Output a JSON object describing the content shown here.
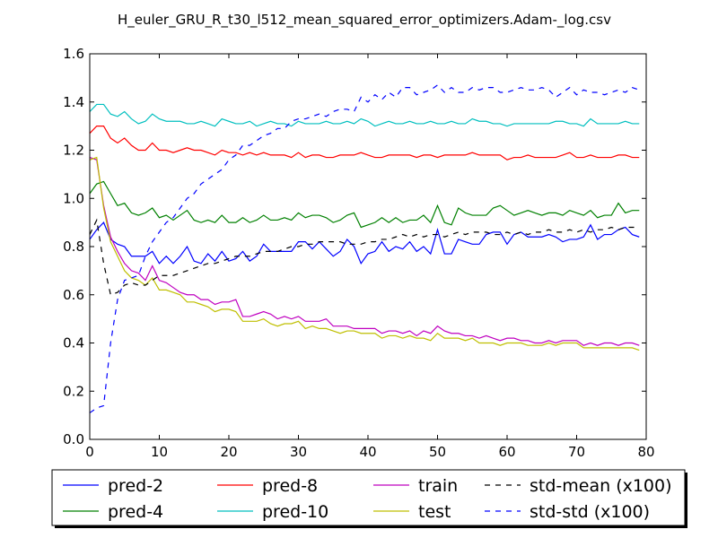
{
  "chart_data": {
    "type": "line",
    "title": "H_euler_GRU_R_t30_l512_mean_squared_error_optimizers.Adam-_log.csv",
    "xlabel": "",
    "ylabel": "",
    "xlim": [
      0,
      80
    ],
    "ylim": [
      0.0,
      1.6
    ],
    "xticks": [
      "0",
      "10",
      "20",
      "30",
      "40",
      "50",
      "60",
      "70",
      "80"
    ],
    "yticks": [
      "0.0",
      "0.2",
      "0.4",
      "0.6",
      "0.8",
      "1.0",
      "1.2",
      "1.4",
      "1.6"
    ],
    "grid": false,
    "legend_position": "bottom-center-outside",
    "series": [
      {
        "name": "pred-2",
        "color": "#0000ff",
        "dash": "solid",
        "values": [
          0.83,
          0.87,
          0.9,
          0.83,
          0.81,
          0.8,
          0.76,
          0.76,
          0.76,
          0.78,
          0.73,
          0.76,
          0.73,
          0.76,
          0.8,
          0.74,
          0.73,
          0.77,
          0.74,
          0.78,
          0.74,
          0.75,
          0.78,
          0.74,
          0.76,
          0.81,
          0.78,
          0.78,
          0.78,
          0.78,
          0.82,
          0.82,
          0.79,
          0.82,
          0.79,
          0.76,
          0.78,
          0.83,
          0.8,
          0.73,
          0.77,
          0.78,
          0.82,
          0.78,
          0.8,
          0.79,
          0.82,
          0.78,
          0.8,
          0.77,
          0.87,
          0.77,
          0.77,
          0.83,
          0.82,
          0.81,
          0.81,
          0.85,
          0.86,
          0.86,
          0.81,
          0.85,
          0.86,
          0.84,
          0.84,
          0.84,
          0.85,
          0.84,
          0.82,
          0.83,
          0.83,
          0.84,
          0.89,
          0.83,
          0.85,
          0.85,
          0.87,
          0.88,
          0.85,
          0.84
        ]
      },
      {
        "name": "pred-4",
        "color": "#008000",
        "dash": "solid",
        "values": [
          1.02,
          1.06,
          1.07,
          1.02,
          0.97,
          0.98,
          0.94,
          0.93,
          0.94,
          0.96,
          0.92,
          0.93,
          0.91,
          0.93,
          0.95,
          0.91,
          0.9,
          0.91,
          0.9,
          0.93,
          0.9,
          0.9,
          0.92,
          0.9,
          0.91,
          0.93,
          0.91,
          0.91,
          0.92,
          0.91,
          0.94,
          0.92,
          0.93,
          0.93,
          0.92,
          0.9,
          0.91,
          0.93,
          0.94,
          0.88,
          0.89,
          0.9,
          0.92,
          0.9,
          0.92,
          0.9,
          0.91,
          0.91,
          0.93,
          0.9,
          0.97,
          0.9,
          0.89,
          0.96,
          0.94,
          0.93,
          0.93,
          0.93,
          0.96,
          0.97,
          0.95,
          0.93,
          0.94,
          0.95,
          0.94,
          0.93,
          0.94,
          0.94,
          0.93,
          0.95,
          0.94,
          0.93,
          0.95,
          0.92,
          0.93,
          0.93,
          0.98,
          0.94,
          0.95,
          0.95
        ]
      },
      {
        "name": "pred-8",
        "color": "#ff0000",
        "dash": "solid",
        "values": [
          1.27,
          1.3,
          1.3,
          1.25,
          1.23,
          1.25,
          1.22,
          1.2,
          1.2,
          1.23,
          1.2,
          1.2,
          1.19,
          1.2,
          1.21,
          1.2,
          1.2,
          1.19,
          1.18,
          1.2,
          1.19,
          1.19,
          1.18,
          1.19,
          1.18,
          1.19,
          1.18,
          1.18,
          1.18,
          1.17,
          1.19,
          1.17,
          1.18,
          1.18,
          1.17,
          1.17,
          1.18,
          1.18,
          1.18,
          1.19,
          1.18,
          1.17,
          1.17,
          1.18,
          1.18,
          1.18,
          1.18,
          1.17,
          1.18,
          1.18,
          1.17,
          1.18,
          1.18,
          1.18,
          1.18,
          1.19,
          1.18,
          1.18,
          1.18,
          1.18,
          1.16,
          1.17,
          1.17,
          1.18,
          1.17,
          1.17,
          1.17,
          1.17,
          1.18,
          1.19,
          1.17,
          1.17,
          1.18,
          1.17,
          1.17,
          1.17,
          1.18,
          1.18,
          1.17,
          1.17
        ]
      },
      {
        "name": "pred-10",
        "color": "#00bfbf",
        "dash": "solid",
        "values": [
          1.36,
          1.39,
          1.39,
          1.35,
          1.34,
          1.36,
          1.33,
          1.31,
          1.32,
          1.35,
          1.33,
          1.32,
          1.32,
          1.32,
          1.31,
          1.31,
          1.32,
          1.31,
          1.3,
          1.33,
          1.32,
          1.31,
          1.31,
          1.32,
          1.3,
          1.31,
          1.32,
          1.31,
          1.31,
          1.3,
          1.32,
          1.31,
          1.31,
          1.31,
          1.32,
          1.31,
          1.31,
          1.32,
          1.31,
          1.33,
          1.32,
          1.3,
          1.31,
          1.32,
          1.31,
          1.31,
          1.32,
          1.31,
          1.31,
          1.32,
          1.31,
          1.31,
          1.32,
          1.31,
          1.31,
          1.33,
          1.32,
          1.32,
          1.31,
          1.31,
          1.3,
          1.31,
          1.31,
          1.31,
          1.31,
          1.31,
          1.31,
          1.32,
          1.32,
          1.31,
          1.31,
          1.3,
          1.33,
          1.31,
          1.31,
          1.31,
          1.31,
          1.32,
          1.31,
          1.31
        ]
      },
      {
        "name": "train",
        "color": "#bf00bf",
        "dash": "solid",
        "values": [
          1.17,
          1.16,
          0.97,
          0.84,
          0.78,
          0.73,
          0.7,
          0.69,
          0.66,
          0.72,
          0.66,
          0.65,
          0.63,
          0.61,
          0.6,
          0.6,
          0.58,
          0.58,
          0.56,
          0.57,
          0.57,
          0.58,
          0.51,
          0.51,
          0.52,
          0.53,
          0.52,
          0.5,
          0.51,
          0.5,
          0.51,
          0.49,
          0.49,
          0.49,
          0.5,
          0.47,
          0.47,
          0.47,
          0.46,
          0.46,
          0.46,
          0.46,
          0.44,
          0.45,
          0.45,
          0.44,
          0.45,
          0.43,
          0.45,
          0.44,
          0.47,
          0.45,
          0.44,
          0.44,
          0.43,
          0.43,
          0.42,
          0.43,
          0.42,
          0.41,
          0.42,
          0.42,
          0.41,
          0.41,
          0.4,
          0.4,
          0.41,
          0.4,
          0.41,
          0.41,
          0.41,
          0.39,
          0.4,
          0.39,
          0.4,
          0.4,
          0.39,
          0.4,
          0.4,
          0.39
        ]
      },
      {
        "name": "test",
        "color": "#bfbf00",
        "dash": "solid",
        "values": [
          1.16,
          1.17,
          0.96,
          0.82,
          0.76,
          0.7,
          0.67,
          0.66,
          0.64,
          0.67,
          0.62,
          0.62,
          0.61,
          0.6,
          0.57,
          0.57,
          0.56,
          0.55,
          0.53,
          0.54,
          0.54,
          0.53,
          0.49,
          0.49,
          0.49,
          0.5,
          0.48,
          0.47,
          0.48,
          0.48,
          0.49,
          0.46,
          0.47,
          0.46,
          0.46,
          0.45,
          0.44,
          0.45,
          0.45,
          0.44,
          0.44,
          0.44,
          0.42,
          0.43,
          0.43,
          0.42,
          0.43,
          0.42,
          0.42,
          0.41,
          0.44,
          0.42,
          0.42,
          0.42,
          0.41,
          0.42,
          0.4,
          0.4,
          0.4,
          0.39,
          0.4,
          0.4,
          0.4,
          0.39,
          0.39,
          0.39,
          0.4,
          0.39,
          0.4,
          0.4,
          0.4,
          0.38,
          0.38,
          0.38,
          0.38,
          0.38,
          0.38,
          0.38,
          0.38,
          0.37
        ]
      },
      {
        "name": "std-mean (x100)",
        "color": "#000000",
        "dash": "dashed",
        "values": [
          0.85,
          0.91,
          0.73,
          0.6,
          0.61,
          0.64,
          0.65,
          0.64,
          0.64,
          0.66,
          0.68,
          0.68,
          0.68,
          0.69,
          0.7,
          0.71,
          0.72,
          0.73,
          0.73,
          0.74,
          0.75,
          0.76,
          0.76,
          0.76,
          0.77,
          0.78,
          0.78,
          0.78,
          0.79,
          0.8,
          0.8,
          0.81,
          0.81,
          0.82,
          0.82,
          0.82,
          0.82,
          0.81,
          0.81,
          0.81,
          0.82,
          0.82,
          0.83,
          0.83,
          0.84,
          0.85,
          0.84,
          0.85,
          0.84,
          0.85,
          0.85,
          0.84,
          0.85,
          0.86,
          0.85,
          0.86,
          0.86,
          0.86,
          0.85,
          0.85,
          0.86,
          0.85,
          0.86,
          0.85,
          0.86,
          0.86,
          0.87,
          0.86,
          0.86,
          0.87,
          0.86,
          0.87,
          0.86,
          0.87,
          0.87,
          0.88,
          0.87,
          0.88,
          0.88,
          0.88
        ]
      },
      {
        "name": "std-std (x100)",
        "color": "#0000ff",
        "dash": "dashed",
        "values": [
          0.11,
          0.13,
          0.14,
          0.4,
          0.58,
          0.66,
          0.67,
          0.68,
          0.76,
          0.82,
          0.86,
          0.9,
          0.92,
          0.96,
          1.0,
          1.02,
          1.06,
          1.08,
          1.1,
          1.12,
          1.16,
          1.18,
          1.22,
          1.22,
          1.24,
          1.26,
          1.27,
          1.29,
          1.29,
          1.32,
          1.33,
          1.33,
          1.34,
          1.35,
          1.34,
          1.36,
          1.37,
          1.37,
          1.36,
          1.42,
          1.4,
          1.43,
          1.41,
          1.44,
          1.42,
          1.46,
          1.46,
          1.43,
          1.44,
          1.45,
          1.47,
          1.44,
          1.46,
          1.44,
          1.44,
          1.46,
          1.45,
          1.46,
          1.46,
          1.44,
          1.44,
          1.45,
          1.46,
          1.45,
          1.45,
          1.46,
          1.45,
          1.42,
          1.44,
          1.46,
          1.43,
          1.45,
          1.44,
          1.44,
          1.43,
          1.44,
          1.45,
          1.44,
          1.46,
          1.45
        ]
      }
    ]
  }
}
